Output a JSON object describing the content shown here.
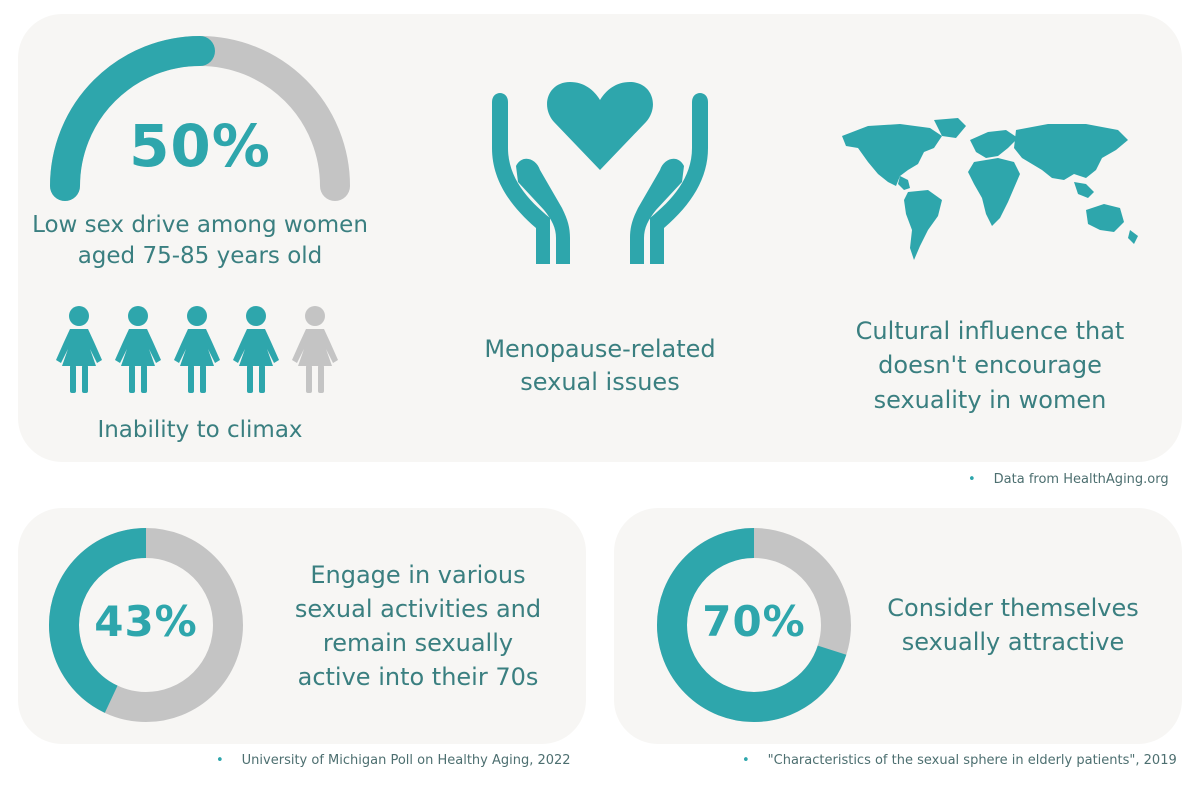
{
  "colors": {
    "accent": "#2ea6ac",
    "muted": "#c4c4c4",
    "text": "#3a7f80",
    "card": "#f7f6f4"
  },
  "top_card": {
    "gauge": {
      "percent": 50,
      "value_label": "50%",
      "caption_line1": "Low sex drive among women",
      "caption_line2": "aged 75-85 years old"
    },
    "figures": {
      "filled": 4,
      "total": 5,
      "caption": "Inability to climax"
    },
    "menopause": {
      "icon": "hands-heart-icon",
      "line1": "Menopause-related",
      "line2": "sexual issues"
    },
    "culture": {
      "icon": "world-map-icon",
      "line1": "Cultural influence that",
      "line2": "doesn't encourage",
      "line3": "sexuality in women"
    },
    "source": "Data from HealthAging.org"
  },
  "bottom_left": {
    "percent": 43,
    "value_label": "43%",
    "line1": "Engage in various",
    "line2": "sexual activities and",
    "line3": "remain sexually",
    "line4": "active into their 70s",
    "source": "University of Michigan Poll on Healthy Aging, 2022"
  },
  "bottom_right": {
    "percent": 70,
    "value_label": "70%",
    "line1": "Consider themselves",
    "line2": "sexually attractive",
    "source": "\"Characteristics of the sexual sphere in elderly patients\", 2019"
  }
}
